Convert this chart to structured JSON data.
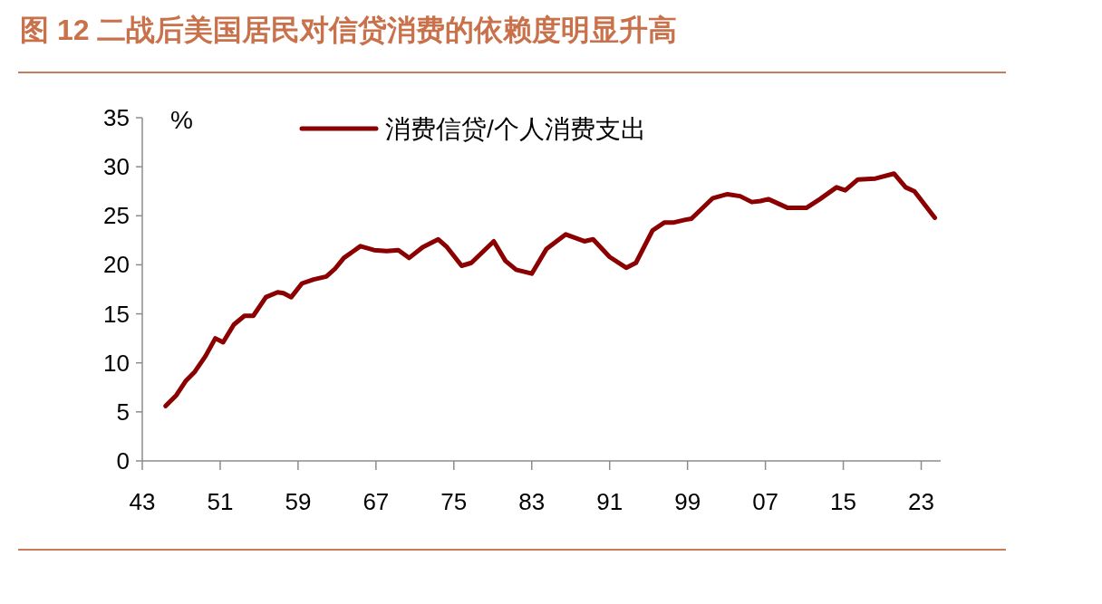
{
  "chart_data": {
    "type": "line",
    "title": "图 12 二战后美国居民对信贷消费的依赖度明显升高",
    "ylabel": "%",
    "legend": "top",
    "x": [
      1945.4,
      1946.5,
      1947.5,
      1948.4,
      1949.5,
      1950.5,
      1951.3,
      1952.4,
      1953.5,
      1954.4,
      1955.7,
      1956.9,
      1957.5,
      1958.3,
      1959.4,
      1960.6,
      1961.9,
      1962.8,
      1963.7,
      1964.7,
      1965.4,
      1966.8,
      1968.1,
      1969.3,
      1970.4,
      1971.8,
      1973.4,
      1974.3,
      1975.8,
      1976.8,
      1979.1,
      1980.3,
      1981.4,
      1983.0,
      1984.5,
      1986.5,
      1988.4,
      1989.3,
      1991.0,
      1992.7,
      1993.7,
      1995.4,
      1996.6,
      1997.5,
      1998.8,
      1999.4,
      2001.6,
      2003.1,
      2004.4,
      2005.6,
      2006.5,
      2007.3,
      2009.3,
      2011.2,
      2012.6,
      2014.3,
      2015.2,
      2016.5,
      2018.3,
      2020.2,
      2021.4,
      2022.3,
      2024.4
    ],
    "xlim": [
      1943,
      2025
    ],
    "xticks": [
      {
        "value": 1943,
        "label": "43"
      },
      {
        "value": 1951,
        "label": "51"
      },
      {
        "value": 1959,
        "label": "59"
      },
      {
        "value": 1967,
        "label": "67"
      },
      {
        "value": 1975,
        "label": "75"
      },
      {
        "value": 1983,
        "label": "83"
      },
      {
        "value": 1991,
        "label": "91"
      },
      {
        "value": 1999,
        "label": "99"
      },
      {
        "value": 2007,
        "label": "07"
      },
      {
        "value": 2015,
        "label": "15"
      },
      {
        "value": 2023,
        "label": "23"
      }
    ],
    "ylim": [
      0,
      35
    ],
    "yticks": [
      0,
      5,
      10,
      15,
      20,
      25,
      30,
      35
    ],
    "series": [
      {
        "name": "消费信贷/个人消费支出",
        "color": "#8b0000",
        "values": [
          5.6,
          6.7,
          8.2,
          9.1,
          10.7,
          12.5,
          12.1,
          13.9,
          14.8,
          14.8,
          16.7,
          17.2,
          17.1,
          16.7,
          18.1,
          18.5,
          18.8,
          19.6,
          20.7,
          21.4,
          21.9,
          21.5,
          21.4,
          21.5,
          20.7,
          21.8,
          22.6,
          21.8,
          19.9,
          20.2,
          22.4,
          20.4,
          19.5,
          19.1,
          21.6,
          23.1,
          22.4,
          22.6,
          20.8,
          19.7,
          20.2,
          23.5,
          24.3,
          24.3,
          24.6,
          24.7,
          26.8,
          27.2,
          27.0,
          26.4,
          26.5,
          26.7,
          25.8,
          25.8,
          26.7,
          27.9,
          27.6,
          28.7,
          28.8,
          29.3,
          27.9,
          27.5,
          24.8
        ]
      }
    ]
  }
}
